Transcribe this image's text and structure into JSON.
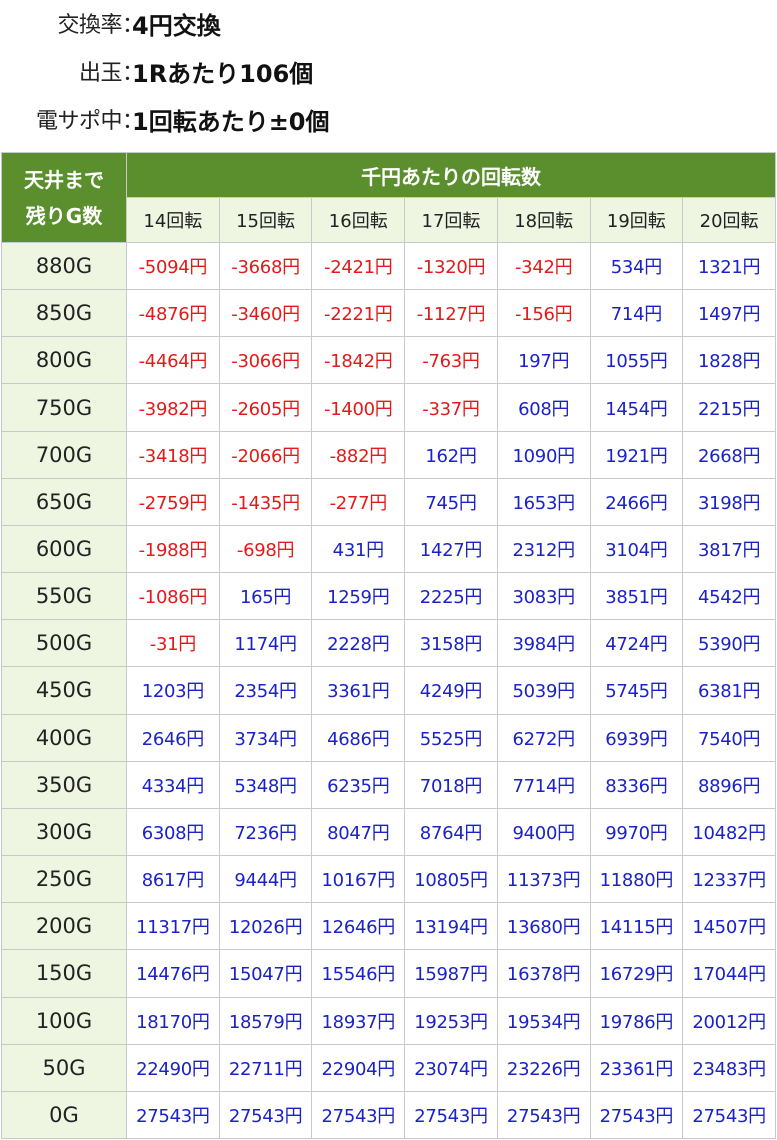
{
  "info": [
    {
      "label": "交換率",
      "value": "4円交換"
    },
    {
      "label": "出玉",
      "value": "1Rあたり106個"
    },
    {
      "label": "電サポ中",
      "value": "1回転あたり±0個"
    }
  ],
  "separator": "：",
  "table": {
    "corner_line1": "天井まで",
    "corner_line2": "残りG数",
    "group_header": "千円あたりの回転数",
    "columns": [
      "14回転",
      "15回転",
      "16回転",
      "17回転",
      "18回転",
      "19回転",
      "20回転"
    ],
    "unit": "円",
    "rows": [
      {
        "label": "880G",
        "values": [
          -5094,
          -3668,
          -2421,
          -1320,
          -342,
          534,
          1321
        ]
      },
      {
        "label": "850G",
        "values": [
          -4876,
          -3460,
          -2221,
          -1127,
          -156,
          714,
          1497
        ]
      },
      {
        "label": "800G",
        "values": [
          -4464,
          -3066,
          -1842,
          -763,
          197,
          1055,
          1828
        ]
      },
      {
        "label": "750G",
        "values": [
          -3982,
          -2605,
          -1400,
          -337,
          608,
          1454,
          2215
        ]
      },
      {
        "label": "700G",
        "values": [
          -3418,
          -2066,
          -882,
          162,
          1090,
          1921,
          2668
        ]
      },
      {
        "label": "650G",
        "values": [
          -2759,
          -1435,
          -277,
          745,
          1653,
          2466,
          3198
        ]
      },
      {
        "label": "600G",
        "values": [
          -1988,
          -698,
          431,
          1427,
          2312,
          3104,
          3817
        ]
      },
      {
        "label": "550G",
        "values": [
          -1086,
          165,
          1259,
          2225,
          3083,
          3851,
          4542
        ]
      },
      {
        "label": "500G",
        "values": [
          -31,
          1174,
          2228,
          3158,
          3984,
          4724,
          5390
        ]
      },
      {
        "label": "450G",
        "values": [
          1203,
          2354,
          3361,
          4249,
          5039,
          5745,
          6381
        ]
      },
      {
        "label": "400G",
        "values": [
          2646,
          3734,
          4686,
          5525,
          6272,
          6939,
          7540
        ]
      },
      {
        "label": "350G",
        "values": [
          4334,
          5348,
          6235,
          7018,
          7714,
          8336,
          8896
        ]
      },
      {
        "label": "300G",
        "values": [
          6308,
          7236,
          8047,
          8764,
          9400,
          9970,
          10482
        ]
      },
      {
        "label": "250G",
        "values": [
          8617,
          9444,
          10167,
          10805,
          11373,
          11880,
          12337
        ]
      },
      {
        "label": "200G",
        "values": [
          11317,
          12026,
          12646,
          13194,
          13680,
          14115,
          14507
        ]
      },
      {
        "label": "150G",
        "values": [
          14476,
          15047,
          15546,
          15987,
          16378,
          16729,
          17044
        ]
      },
      {
        "label": "100G",
        "values": [
          18170,
          18579,
          18937,
          19253,
          19534,
          19786,
          20012
        ]
      },
      {
        "label": "50G",
        "values": [
          22490,
          22711,
          22904,
          23074,
          23226,
          23361,
          23483
        ]
      },
      {
        "label": "0G",
        "values": [
          27543,
          27543,
          27543,
          27543,
          27543,
          27543,
          27543
        ]
      }
    ]
  },
  "colors": {
    "header_bg": "#5b8f2e",
    "light_header_bg": "#eef6e2",
    "negative": "#e41a1a",
    "positive": "#1a22c8"
  }
}
